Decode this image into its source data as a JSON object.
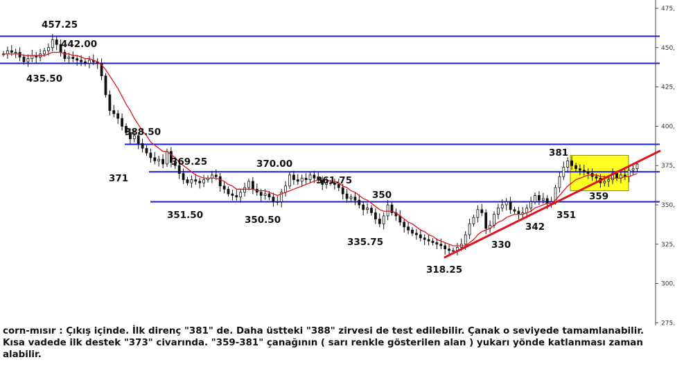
{
  "chart_data": {
    "type": "line",
    "title": "",
    "y_axis": {
      "position": "right",
      "range": [
        275,
        477
      ],
      "ticks": [
        475,
        450,
        425,
        400,
        375,
        350,
        325,
        300,
        275
      ],
      "tick_labels": [
        "475,",
        "450,",
        "425,",
        "400,",
        "375,",
        "350,",
        "325,",
        "300,",
        "275,"
      ]
    },
    "grid": false,
    "series": [
      {
        "style": "candlestick-black",
        "values": [
          446,
          448,
          447,
          447,
          444,
          441,
          443,
          445,
          444,
          446,
          448,
          450,
          455,
          452,
          447,
          443,
          444,
          443,
          442,
          441,
          440,
          442,
          441,
          440,
          432,
          420,
          410,
          408,
          405,
          400,
          396,
          392,
          394,
          389,
          386,
          383,
          380,
          378,
          379,
          376,
          384,
          377,
          375,
          370,
          366,
          364,
          366,
          365,
          364,
          366,
          367,
          369,
          368,
          362,
          360,
          357,
          356,
          355,
          358,
          361,
          365,
          360,
          358,
          356,
          357,
          355,
          352,
          352,
          358,
          362,
          369,
          366,
          365,
          367,
          366,
          369,
          367,
          366,
          363,
          364,
          364,
          363,
          361,
          357,
          354,
          355,
          353,
          350,
          347,
          348,
          345,
          341,
          338,
          343,
          350,
          345,
          343,
          339,
          336,
          334,
          332,
          331,
          329,
          328,
          327,
          326,
          325,
          324,
          322,
          321,
          321,
          323,
          325,
          331,
          338,
          342,
          347,
          345,
          335,
          337,
          344,
          348,
          350,
          352,
          347,
          346,
          344,
          345,
          348,
          352,
          356,
          353,
          354,
          351,
          352,
          361,
          368,
          374,
          378,
          375,
          373,
          372,
          371,
          370,
          368,
          367,
          364,
          365,
          366,
          370,
          367,
          369,
          368,
          372,
          373,
          376
        ]
      },
      {
        "style": "moving-average-red",
        "values": [
          446,
          446,
          446,
          446,
          446,
          445,
          445,
          445,
          445,
          445,
          445,
          446,
          447,
          447,
          447,
          446,
          446,
          445,
          445,
          444,
          443,
          443,
          442,
          441,
          439,
          436,
          432,
          428,
          424,
          419,
          414,
          410,
          405,
          401,
          397,
          394,
          390,
          388,
          386,
          384,
          384,
          382,
          380,
          377,
          375,
          373,
          371,
          369,
          368,
          367,
          367,
          367,
          367,
          366,
          365,
          363,
          362,
          360,
          360,
          360,
          360,
          360,
          359,
          359,
          359,
          358,
          357,
          356,
          357,
          358,
          359,
          360,
          361,
          362,
          363,
          364,
          365,
          366,
          366,
          366,
          365,
          365,
          364,
          362,
          361,
          359,
          358,
          356,
          354,
          353,
          351,
          349,
          347,
          346,
          346,
          346,
          345,
          343,
          341,
          339,
          338,
          336,
          334,
          333,
          331,
          330,
          328,
          327,
          326,
          325,
          324,
          324,
          324,
          324,
          326,
          328,
          331,
          333,
          334,
          335,
          337,
          339,
          340,
          342,
          343,
          344,
          344,
          344,
          345,
          346,
          348,
          349,
          350,
          351,
          351,
          353,
          356,
          359,
          362,
          364,
          366,
          367,
          368,
          369,
          369,
          369,
          368,
          368,
          367,
          367,
          367,
          367,
          368,
          368,
          369,
          370
        ]
      }
    ],
    "horizontal_lines": [
      457.25,
      440,
      388.5,
      371,
      352
    ],
    "trendline": {
      "from": 316.5,
      "to": 384.5
    },
    "highlight_box": {
      "y_range": [
        359,
        381.5
      ]
    },
    "annotations": [
      {
        "text": "457.25",
        "y": 457.25
      },
      {
        "text": "442.00",
        "y": 442
      },
      {
        "text": "435.50",
        "y": 435.5
      },
      {
        "text": "388.50",
        "y": 388.5
      },
      {
        "text": "371",
        "y": 371
      },
      {
        "text": "369.25",
        "y": 369.25
      },
      {
        "text": "370.00",
        "y": 370
      },
      {
        "text": "361.75",
        "y": 361.75
      },
      {
        "text": "351.50",
        "y": 351.5
      },
      {
        "text": "350.50",
        "y": 350.5
      },
      {
        "text": "350",
        "y": 350
      },
      {
        "text": "335.75",
        "y": 335.75
      },
      {
        "text": "318.25",
        "y": 318.25
      },
      {
        "text": "330",
        "y": 330
      },
      {
        "text": "342",
        "y": 342
      },
      {
        "text": "351",
        "y": 351
      },
      {
        "text": "381",
        "y": 381
      },
      {
        "text": "359",
        "y": 359
      }
    ],
    "colors": {
      "level_lines": "#1a1adc",
      "trendline": "#e0141e",
      "moving_average": "#e0141e",
      "highlight_fill": "#ffff22",
      "highlight_border": "#8a8a00",
      "candles": "#111111"
    }
  },
  "caption": {
    "lines": [
      "corn-mısır : Çıkış içinde. İlk direnç \"381\" de. Daha üstteki \"388\" zirvesi de test edilebilir. Çanak o seviyede tamamlanabilir.",
      "Kısa vadede ilk destek \"373\" civarında. \"359-381\" çanağının ( sarı renkle gösterilen alan ) yukarı yönde katlanması zaman",
      "alabilir."
    ]
  }
}
